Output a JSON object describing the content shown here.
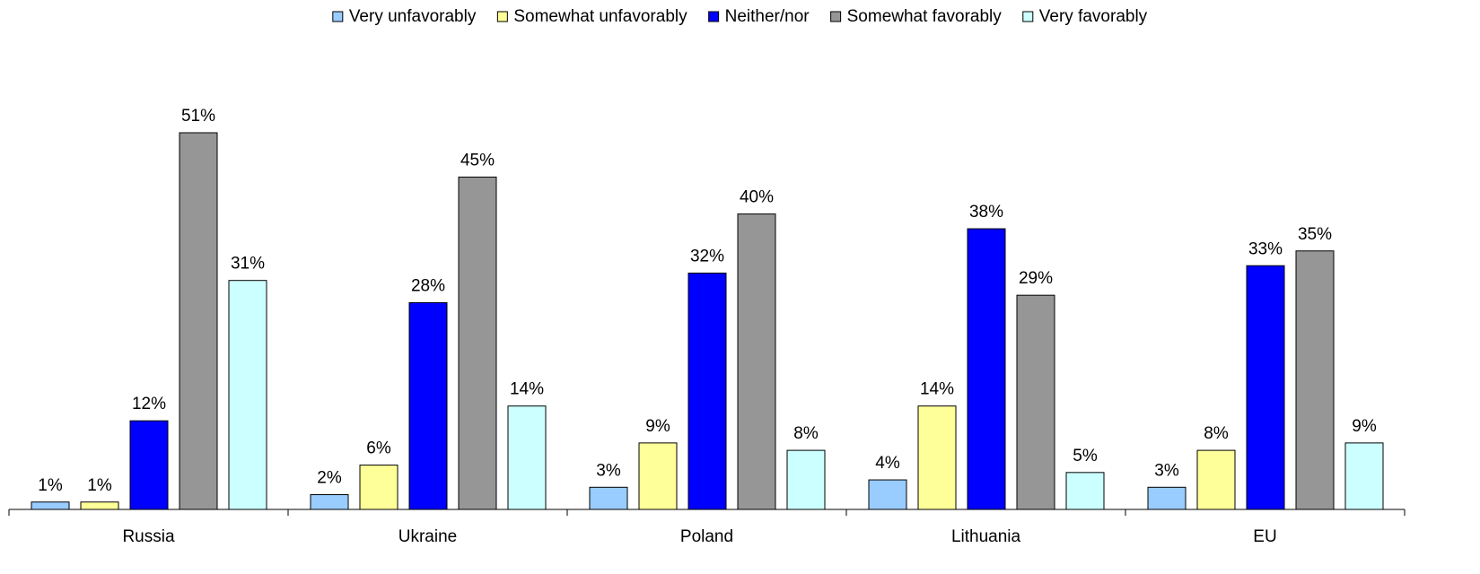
{
  "chart_data": {
    "type": "bar",
    "categories": [
      "Russia",
      "Ukraine",
      "Poland",
      "Lithuania",
      "EU"
    ],
    "series": [
      {
        "name": "Very unfavorably",
        "color": "#99ccff",
        "values": [
          1,
          2,
          3,
          4,
          3
        ],
        "value_labels": [
          "1%",
          "2%",
          "3%",
          "4%",
          "3%"
        ]
      },
      {
        "name": "Somewhat unfavorably",
        "color": "#ffff99",
        "values": [
          1,
          6,
          9,
          14,
          8
        ],
        "value_labels": [
          "1%",
          "6%",
          "9%",
          "14%",
          "8%"
        ]
      },
      {
        "name": "Neither/nor",
        "color": "#0000ff",
        "values": [
          12,
          28,
          32,
          38,
          33
        ],
        "value_labels": [
          "12%",
          "28%",
          "32%",
          "38%",
          "33%"
        ]
      },
      {
        "name": "Somewhat favorably",
        "color": "#969696",
        "values": [
          51,
          45,
          40,
          29,
          35
        ],
        "value_labels": [
          "51%",
          "45%",
          "40%",
          "29%",
          "35%"
        ]
      },
      {
        "name": "Very favorably",
        "color": "#ccffff",
        "values": [
          31,
          14,
          8,
          5,
          9
        ],
        "value_labels": [
          "31%",
          "14%",
          "8%",
          "5%",
          "9%"
        ]
      }
    ],
    "legend": "top"
  }
}
